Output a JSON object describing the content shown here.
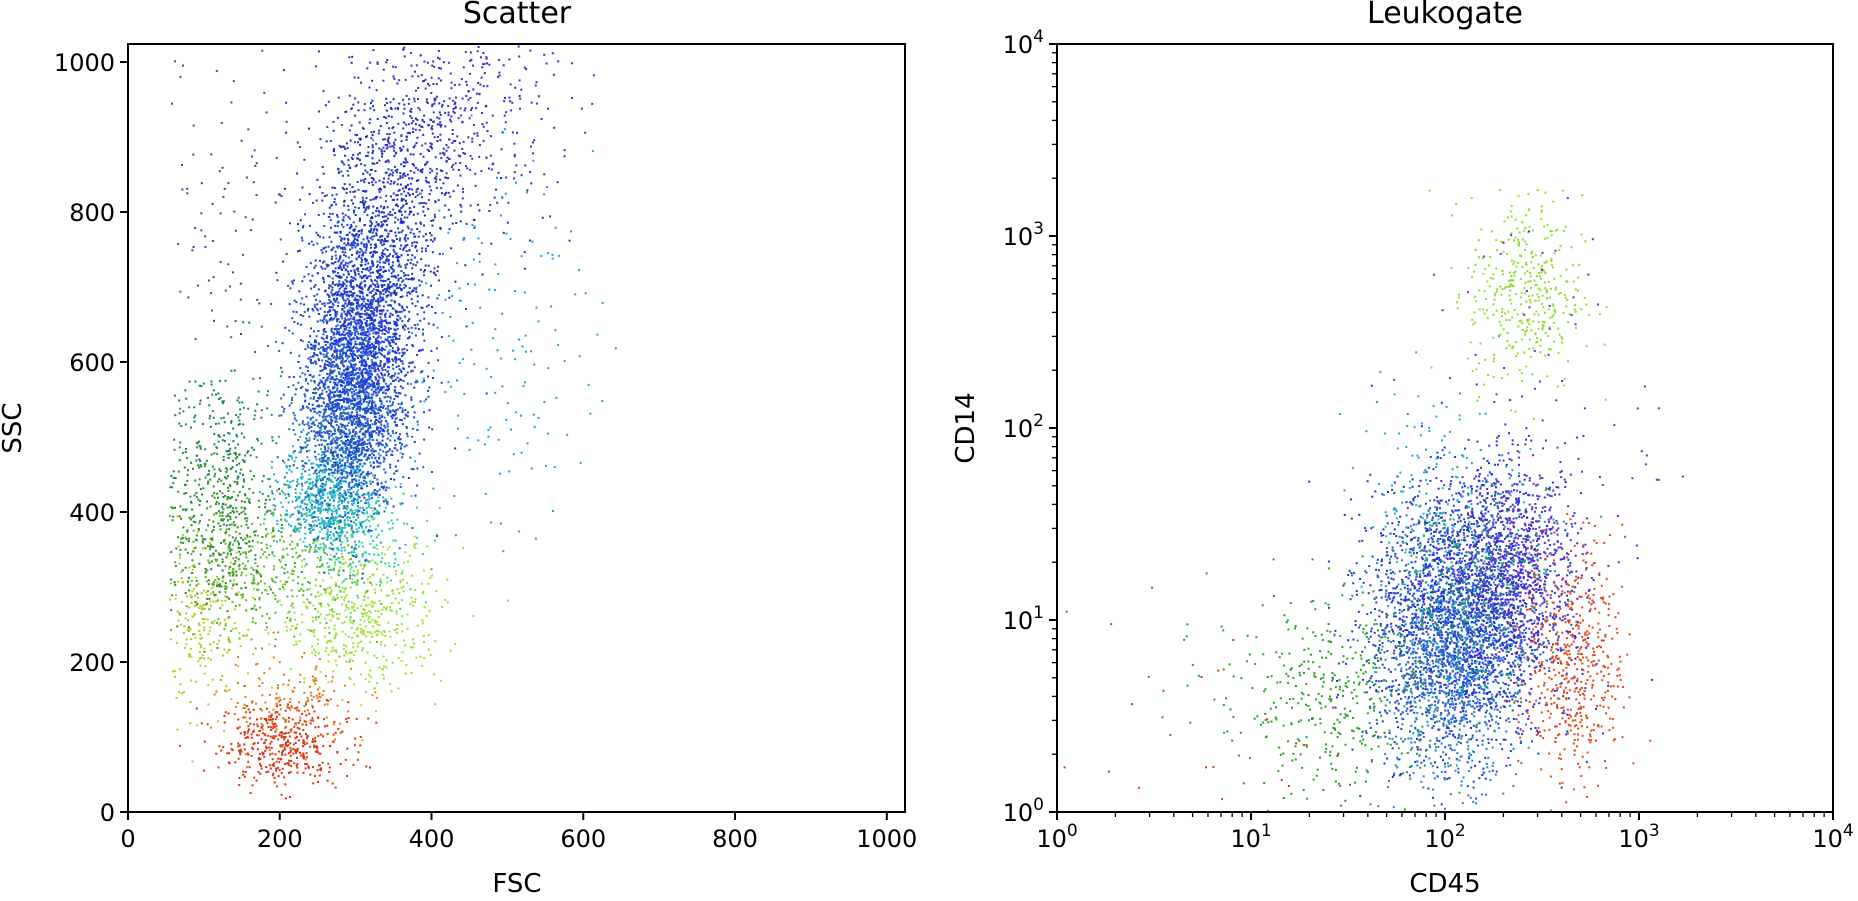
{
  "chart_data": [
    {
      "type": "scatter",
      "title": "Scatter",
      "xlabel": "FSC",
      "ylabel": "SSC",
      "xlim": [
        0,
        1024
      ],
      "ylim": [
        0,
        1024
      ],
      "xscale": "linear",
      "yscale": "linear",
      "x_ticks": [
        {
          "value": 0,
          "label": "0"
        },
        {
          "value": 200,
          "label": "200"
        },
        {
          "value": 400,
          "label": "400"
        },
        {
          "value": 600,
          "label": "600"
        },
        {
          "value": 800,
          "label": "800"
        },
        {
          "value": 1000,
          "label": "1000"
        }
      ],
      "y_ticks": [
        {
          "value": 0,
          "label": "0"
        },
        {
          "value": 200,
          "label": "200"
        },
        {
          "value": 400,
          "label": "400"
        },
        {
          "value": 600,
          "label": "600"
        },
        {
          "value": 800,
          "label": "800"
        },
        {
          "value": 1000,
          "label": "1000"
        }
      ],
      "grid": false,
      "point_color": "colored by population (rainbow: red, orange, yellow-green, green, teal, cyan, blue, indigo, violet)",
      "clusters": [
        {
          "color": "#dd3311",
          "n": 420,
          "center": [
            205,
            92
          ],
          "spread": [
            42,
            28
          ],
          "tail": "none"
        },
        {
          "color": "#e07a1b",
          "n": 140,
          "center": [
            210,
            150
          ],
          "spread": [
            45,
            30
          ],
          "tail": "none"
        },
        {
          "color": "#bcc822",
          "n": 230,
          "center": [
            95,
            250
          ],
          "spread": [
            30,
            55
          ],
          "tail": "none"
        },
        {
          "color": "#9fe035",
          "n": 520,
          "center": [
            305,
            265
          ],
          "spread": [
            55,
            50
          ],
          "tail": "none"
        },
        {
          "color": "#5db62c",
          "n": 330,
          "center": [
            185,
            320
          ],
          "spread": [
            60,
            45
          ],
          "tail": "none"
        },
        {
          "color": "#2c8f2a",
          "n": 420,
          "center": [
            115,
            390
          ],
          "spread": [
            42,
            60
          ],
          "tail": "none"
        },
        {
          "color": "#16806a",
          "n": 220,
          "center": [
            140,
            500
          ],
          "spread": [
            45,
            65
          ],
          "tail": "none"
        },
        {
          "color": "#2bd1a8",
          "n": 250,
          "center": [
            300,
            370
          ],
          "spread": [
            40,
            40
          ],
          "tail": "none"
        },
        {
          "color": "#1ab0c9",
          "n": 600,
          "center": [
            262,
            420
          ],
          "spread": [
            30,
            35
          ],
          "tail": "none"
        },
        {
          "color": "#1e62c9",
          "n": 1400,
          "center": [
            290,
            530
          ],
          "spread": [
            30,
            70
          ],
          "tail": "none"
        },
        {
          "color": "#1f3dd6",
          "n": 2200,
          "center": [
            310,
            640
          ],
          "spread": [
            38,
            90
          ],
          "tail": "none"
        },
        {
          "color": "#1b2fb8",
          "n": 600,
          "center": [
            345,
            810
          ],
          "spread": [
            45,
            80
          ],
          "tail": "none"
        },
        {
          "color": "#3a2ad0",
          "n": 500,
          "center": [
            420,
            920
          ],
          "spread": [
            70,
            70
          ],
          "tail": "none"
        },
        {
          "color": "#1f9fe0",
          "n": 170,
          "center": [
            470,
            620
          ],
          "spread": [
            70,
            120
          ],
          "tail": "none"
        },
        {
          "color": "#2f4f8f",
          "n": 90,
          "center": [
            140,
            830
          ],
          "spread": [
            50,
            110
          ],
          "tail": "none"
        }
      ]
    },
    {
      "type": "scatter",
      "title": "Leukogate",
      "xlabel": "CD45",
      "ylabel": "CD14",
      "xlim": [
        1,
        10000
      ],
      "ylim": [
        1,
        10000
      ],
      "xscale": "log",
      "yscale": "log",
      "x_ticks": [
        {
          "value": 1,
          "base": "10",
          "exp": "0"
        },
        {
          "value": 10,
          "base": "10",
          "exp": "1"
        },
        {
          "value": 100,
          "base": "10",
          "exp": "2"
        },
        {
          "value": 1000,
          "base": "10",
          "exp": "3"
        },
        {
          "value": 10000,
          "base": "10",
          "exp": "4"
        }
      ],
      "y_ticks": [
        {
          "value": 1,
          "base": "10",
          "exp": "0"
        },
        {
          "value": 10,
          "base": "10",
          "exp": "1"
        },
        {
          "value": 100,
          "base": "10",
          "exp": "2"
        },
        {
          "value": 1000,
          "base": "10",
          "exp": "3"
        },
        {
          "value": 10000,
          "base": "10",
          "exp": "4"
        }
      ],
      "grid": false,
      "point_color": "same population colors as Scatter panel",
      "clusters": [
        {
          "color": "#2236d8",
          "n": 2600,
          "center": [
            120,
            10
          ],
          "spread": [
            1.7,
            2.2
          ],
          "tail": "none"
        },
        {
          "color": "#1f7fd6",
          "n": 700,
          "center": [
            105,
            5
          ],
          "spread": [
            1.5,
            1.9
          ],
          "tail": "none"
        },
        {
          "color": "#4a2ad6",
          "n": 900,
          "center": [
            230,
            20
          ],
          "spread": [
            1.5,
            1.8
          ],
          "tail": "none"
        },
        {
          "color": "#1aa56a",
          "n": 400,
          "center": [
            135,
            15
          ],
          "spread": [
            1.6,
            2.0
          ],
          "tail": "none"
        },
        {
          "color": "#2d9a2a",
          "n": 450,
          "center": [
            28,
            4
          ],
          "spread": [
            2.1,
            1.9
          ],
          "tail": "none"
        },
        {
          "color": "#e0461a",
          "n": 520,
          "center": [
            460,
            6
          ],
          "spread": [
            1.35,
            2.0
          ],
          "tail": "none"
        },
        {
          "color": "#8fde2e",
          "n": 380,
          "center": [
            260,
            500
          ],
          "spread": [
            1.4,
            1.8
          ],
          "tail": "none"
        },
        {
          "color": "#1ab0c9",
          "n": 200,
          "center": [
            90,
            35
          ],
          "spread": [
            1.6,
            2.2
          ],
          "tail": "none"
        },
        {
          "color": "#6a2ac8",
          "n": 80,
          "center": [
            300,
            120
          ],
          "spread": [
            2.0,
            3.5
          ],
          "tail": "none"
        },
        {
          "color": "#d43a1a",
          "n": 40,
          "center": [
            6,
            1.8
          ],
          "spread": [
            3.0,
            2.5
          ],
          "tail": "none"
        }
      ]
    }
  ]
}
